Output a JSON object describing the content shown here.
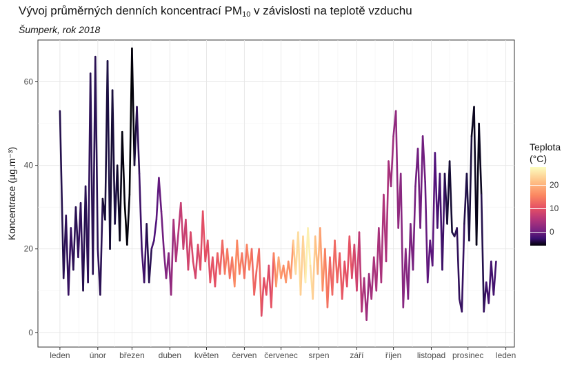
{
  "title_main": "Vývoj průměrných denních koncentrací PM",
  "title_sub": "10",
  "title_rest": " v závislosti na teplotě vzduchu",
  "subtitle": "Šumperk, rok 2018",
  "chart_data": {
    "type": "line",
    "ylabel": "Koncentrace (µg.m⁻³)",
    "ylim": [
      0,
      70
    ],
    "yticks": [
      0,
      20,
      40,
      60
    ],
    "grid": true,
    "x_labels": [
      "leden",
      "únor",
      "březen",
      "duben",
      "květen",
      "červen",
      "červenec",
      "srpen",
      "září",
      "říjen",
      "listopad",
      "prosinec",
      "leden"
    ],
    "legend": {
      "title_line1": "Teplota",
      "title_line2": "(°C)",
      "ticks": [
        "20",
        "10",
        "0"
      ],
      "range": [
        -4,
        30
      ],
      "placement": "right"
    },
    "series": [
      {
        "points": [
          {
            "d": 0,
            "v": 53,
            "t": 0
          },
          {
            "d": 3,
            "v": 13,
            "t": 0
          },
          {
            "d": 5,
            "v": 28,
            "t": 1
          },
          {
            "d": 7,
            "v": 9,
            "t": 1
          },
          {
            "d": 9,
            "v": 25,
            "t": 2
          },
          {
            "d": 11,
            "v": 15,
            "t": 1
          },
          {
            "d": 13,
            "v": 30,
            "t": 0
          },
          {
            "d": 15,
            "v": 18,
            "t": 1
          },
          {
            "d": 17,
            "v": 31,
            "t": 2
          },
          {
            "d": 19,
            "v": 10,
            "t": 0
          },
          {
            "d": 21,
            "v": 35,
            "t": 0
          },
          {
            "d": 23,
            "v": 12,
            "t": 1
          },
          {
            "d": 25,
            "v": 62,
            "t": 1
          },
          {
            "d": 27,
            "v": 14,
            "t": 0
          },
          {
            "d": 29,
            "v": 66,
            "t": 1
          },
          {
            "d": 31,
            "v": 20,
            "t": 0
          },
          {
            "d": 33,
            "v": 9,
            "t": 2
          },
          {
            "d": 35,
            "v": 32,
            "t": -1
          },
          {
            "d": 37,
            "v": 27,
            "t": -2
          },
          {
            "d": 39,
            "v": 65,
            "t": 0
          },
          {
            "d": 41,
            "v": 20,
            "t": -1
          },
          {
            "d": 43,
            "v": 58,
            "t": -2
          },
          {
            "d": 45,
            "v": 26,
            "t": 0
          },
          {
            "d": 47,
            "v": 40,
            "t": -1
          },
          {
            "d": 49,
            "v": 22,
            "t": -3
          },
          {
            "d": 51,
            "v": 48,
            "t": -3
          },
          {
            "d": 53,
            "v": 31,
            "t": -4
          },
          {
            "d": 55,
            "v": 21,
            "t": -4
          },
          {
            "d": 57,
            "v": 33,
            "t": -3
          },
          {
            "d": 59,
            "v": 68,
            "t": -5
          },
          {
            "d": 61,
            "v": 40,
            "t": -2
          },
          {
            "d": 63,
            "v": 54,
            "t": 0
          },
          {
            "d": 65,
            "v": 38,
            "t": 2
          },
          {
            "d": 67,
            "v": 20,
            "t": 2
          },
          {
            "d": 69,
            "v": 12,
            "t": 3
          },
          {
            "d": 71,
            "v": 26,
            "t": 1
          },
          {
            "d": 73,
            "v": 12,
            "t": -1
          },
          {
            "d": 75,
            "v": 20,
            "t": 2
          },
          {
            "d": 77,
            "v": 22,
            "t": 3
          },
          {
            "d": 79,
            "v": 27,
            "t": 4
          },
          {
            "d": 81,
            "v": 37,
            "t": 5
          },
          {
            "d": 83,
            "v": 29,
            "t": 6
          },
          {
            "d": 85,
            "v": 20,
            "t": 7
          },
          {
            "d": 87,
            "v": 13,
            "t": 8
          },
          {
            "d": 89,
            "v": 19,
            "t": 9
          },
          {
            "d": 91,
            "v": 9,
            "t": 8
          },
          {
            "d": 93,
            "v": 27,
            "t": 12
          },
          {
            "d": 95,
            "v": 17,
            "t": 12
          },
          {
            "d": 97,
            "v": 24,
            "t": 13
          },
          {
            "d": 99,
            "v": 31,
            "t": 14
          },
          {
            "d": 101,
            "v": 20,
            "t": 15
          },
          {
            "d": 103,
            "v": 27,
            "t": 14
          },
          {
            "d": 105,
            "v": 15,
            "t": 16
          },
          {
            "d": 107,
            "v": 24,
            "t": 15
          },
          {
            "d": 109,
            "v": 17,
            "t": 17
          },
          {
            "d": 111,
            "v": 13,
            "t": 15
          },
          {
            "d": 113,
            "v": 21,
            "t": 16
          },
          {
            "d": 115,
            "v": 15,
            "t": 17
          },
          {
            "d": 117,
            "v": 29,
            "t": 16
          },
          {
            "d": 119,
            "v": 17,
            "t": 18
          },
          {
            "d": 121,
            "v": 22,
            "t": 16
          },
          {
            "d": 123,
            "v": 12,
            "t": 17
          },
          {
            "d": 125,
            "v": 18,
            "t": 18
          },
          {
            "d": 127,
            "v": 11,
            "t": 16
          },
          {
            "d": 129,
            "v": 19,
            "t": 18
          },
          {
            "d": 131,
            "v": 14,
            "t": 19
          },
          {
            "d": 133,
            "v": 22,
            "t": 18
          },
          {
            "d": 135,
            "v": 14,
            "t": 20
          },
          {
            "d": 137,
            "v": 20,
            "t": 21
          },
          {
            "d": 139,
            "v": 13,
            "t": 19
          },
          {
            "d": 141,
            "v": 18,
            "t": 20
          },
          {
            "d": 143,
            "v": 11,
            "t": 21
          },
          {
            "d": 145,
            "v": 22,
            "t": 22
          },
          {
            "d": 147,
            "v": 14,
            "t": 20
          },
          {
            "d": 149,
            "v": 19,
            "t": 21
          },
          {
            "d": 151,
            "v": 13,
            "t": 19
          },
          {
            "d": 153,
            "v": 21,
            "t": 20
          },
          {
            "d": 155,
            "v": 15,
            "t": 22
          },
          {
            "d": 157,
            "v": 20,
            "t": 20
          },
          {
            "d": 159,
            "v": 9,
            "t": 18
          },
          {
            "d": 161,
            "v": 15,
            "t": 19
          },
          {
            "d": 163,
            "v": 20,
            "t": 21
          },
          {
            "d": 165,
            "v": 4,
            "t": 17
          },
          {
            "d": 167,
            "v": 13,
            "t": 16
          },
          {
            "d": 169,
            "v": 9,
            "t": 18
          },
          {
            "d": 171,
            "v": 16,
            "t": 17
          },
          {
            "d": 173,
            "v": 6,
            "t": 15
          },
          {
            "d": 175,
            "v": 19,
            "t": 20
          },
          {
            "d": 177,
            "v": 11,
            "t": 22
          },
          {
            "d": 179,
            "v": 18,
            "t": 24
          },
          {
            "d": 181,
            "v": 13,
            "t": 23
          },
          {
            "d": 183,
            "v": 16,
            "t": 21
          },
          {
            "d": 185,
            "v": 12,
            "t": 22
          },
          {
            "d": 187,
            "v": 17,
            "t": 23
          },
          {
            "d": 189,
            "v": 13,
            "t": 20
          },
          {
            "d": 191,
            "v": 22,
            "t": 25
          },
          {
            "d": 193,
            "v": 14,
            "t": 27
          },
          {
            "d": 195,
            "v": 24,
            "t": 28
          },
          {
            "d": 197,
            "v": 9,
            "t": 27
          },
          {
            "d": 199,
            "v": 23,
            "t": 26
          },
          {
            "d": 201,
            "v": 12,
            "t": 28
          },
          {
            "d": 203,
            "v": 25,
            "t": 30
          },
          {
            "d": 205,
            "v": 16,
            "t": 28
          },
          {
            "d": 207,
            "v": 8,
            "t": 27
          },
          {
            "d": 209,
            "v": 23,
            "t": 26
          },
          {
            "d": 211,
            "v": 14,
            "t": 25
          },
          {
            "d": 213,
            "v": 25,
            "t": 24
          },
          {
            "d": 215,
            "v": 10,
            "t": 22
          },
          {
            "d": 217,
            "v": 20,
            "t": 21
          },
          {
            "d": 219,
            "v": 6,
            "t": 20
          },
          {
            "d": 221,
            "v": 18,
            "t": 19
          },
          {
            "d": 223,
            "v": 9,
            "t": 18
          },
          {
            "d": 225,
            "v": 22,
            "t": 20
          },
          {
            "d": 227,
            "v": 12,
            "t": 18
          },
          {
            "d": 229,
            "v": 19,
            "t": 19
          },
          {
            "d": 231,
            "v": 8,
            "t": 17
          },
          {
            "d": 233,
            "v": 17,
            "t": 18
          },
          {
            "d": 235,
            "v": 11,
            "t": 16
          },
          {
            "d": 237,
            "v": 23,
            "t": 18
          },
          {
            "d": 239,
            "v": 13,
            "t": 17
          },
          {
            "d": 241,
            "v": 21,
            "t": 15
          },
          {
            "d": 243,
            "v": 10,
            "t": 16
          },
          {
            "d": 245,
            "v": 24,
            "t": 14
          },
          {
            "d": 247,
            "v": 5,
            "t": 13
          },
          {
            "d": 249,
            "v": 13,
            "t": 12
          },
          {
            "d": 251,
            "v": 3,
            "t": 11
          },
          {
            "d": 253,
            "v": 14,
            "t": 10
          },
          {
            "d": 255,
            "v": 8,
            "t": 11
          },
          {
            "d": 257,
            "v": 18,
            "t": 12
          },
          {
            "d": 259,
            "v": 10,
            "t": 12
          },
          {
            "d": 261,
            "v": 25,
            "t": 12
          },
          {
            "d": 263,
            "v": 12,
            "t": 11
          },
          {
            "d": 265,
            "v": 33,
            "t": 13
          },
          {
            "d": 267,
            "v": 17,
            "t": 12
          },
          {
            "d": 269,
            "v": 41,
            "t": 12
          },
          {
            "d": 271,
            "v": 35,
            "t": 11
          },
          {
            "d": 273,
            "v": 47,
            "t": 10
          },
          {
            "d": 275,
            "v": 53,
            "t": 9
          },
          {
            "d": 277,
            "v": 25,
            "t": 10
          },
          {
            "d": 279,
            "v": 38,
            "t": 9
          },
          {
            "d": 281,
            "v": 6,
            "t": 8
          },
          {
            "d": 283,
            "v": 20,
            "t": 9
          },
          {
            "d": 285,
            "v": 8,
            "t": 8
          },
          {
            "d": 287,
            "v": 26,
            "t": 7
          },
          {
            "d": 289,
            "v": 15,
            "t": 8
          },
          {
            "d": 291,
            "v": 35,
            "t": 6
          },
          {
            "d": 293,
            "v": 44,
            "t": 7
          },
          {
            "d": 295,
            "v": 25,
            "t": 6
          },
          {
            "d": 297,
            "v": 47,
            "t": 7
          },
          {
            "d": 299,
            "v": 36,
            "t": 6
          },
          {
            "d": 301,
            "v": 12,
            "t": 5
          },
          {
            "d": 303,
            "v": 22,
            "t": 4
          },
          {
            "d": 305,
            "v": 16,
            "t": 5
          },
          {
            "d": 307,
            "v": 43,
            "t": 4
          },
          {
            "d": 309,
            "v": 25,
            "t": 3
          },
          {
            "d": 311,
            "v": 38,
            "t": 2
          },
          {
            "d": 313,
            "v": 15,
            "t": 3
          },
          {
            "d": 315,
            "v": 38,
            "t": 1
          },
          {
            "d": 317,
            "v": 26,
            "t": -1
          },
          {
            "d": 319,
            "v": 41,
            "t": -2
          },
          {
            "d": 321,
            "v": 24,
            "t": -1
          },
          {
            "d": 323,
            "v": 23,
            "t": 0
          },
          {
            "d": 325,
            "v": 25,
            "t": 1
          },
          {
            "d": 327,
            "v": 8,
            "t": 1
          },
          {
            "d": 329,
            "v": 5,
            "t": 2
          },
          {
            "d": 331,
            "v": 26,
            "t": 1
          },
          {
            "d": 333,
            "v": 38,
            "t": -1
          },
          {
            "d": 335,
            "v": 22,
            "t": 0
          },
          {
            "d": 337,
            "v": 47,
            "t": -2
          },
          {
            "d": 339,
            "v": 54,
            "t": -3
          },
          {
            "d": 341,
            "v": 21,
            "t": -2
          },
          {
            "d": 343,
            "v": 50,
            "t": -4
          },
          {
            "d": 345,
            "v": 33,
            "t": -1
          },
          {
            "d": 347,
            "v": 5,
            "t": 1
          },
          {
            "d": 349,
            "v": 12,
            "t": 2
          },
          {
            "d": 351,
            "v": 7,
            "t": 3
          },
          {
            "d": 353,
            "v": 17,
            "t": 2
          },
          {
            "d": 355,
            "v": 9,
            "t": 3
          },
          {
            "d": 357,
            "v": 17,
            "t": 2
          }
        ]
      }
    ]
  }
}
